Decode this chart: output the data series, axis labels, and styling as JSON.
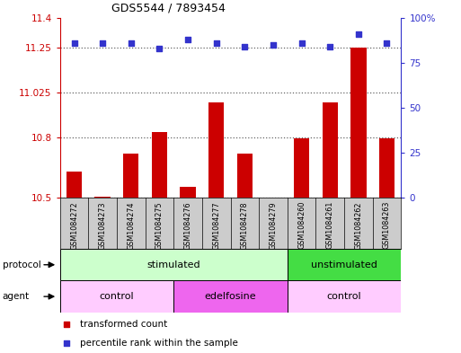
{
  "title": "GDS5544 / 7893454",
  "samples": [
    "GSM1084272",
    "GSM1084273",
    "GSM1084274",
    "GSM1084275",
    "GSM1084276",
    "GSM1084277",
    "GSM1084278",
    "GSM1084279",
    "GSM1084260",
    "GSM1084261",
    "GSM1084262",
    "GSM1084263"
  ],
  "transformed_counts": [
    10.63,
    10.505,
    10.72,
    10.83,
    10.555,
    10.975,
    10.72,
    10.502,
    10.795,
    10.975,
    11.25,
    10.795
  ],
  "percentile_ranks": [
    86,
    86,
    86,
    83,
    88,
    86,
    84,
    85,
    86,
    84,
    91,
    86
  ],
  "ylim_left": [
    10.5,
    11.4
  ],
  "ylim_right": [
    0,
    100
  ],
  "yticks_left": [
    10.5,
    10.8,
    11.025,
    11.25,
    11.4
  ],
  "ytick_labels_left": [
    "10.5",
    "10.8",
    "11.025",
    "11.25",
    "11.4"
  ],
  "yticks_right": [
    0,
    25,
    50,
    75,
    100
  ],
  "ytick_labels_right": [
    "0",
    "25",
    "50",
    "75",
    "100%"
  ],
  "bar_color": "#cc0000",
  "dot_color": "#3333cc",
  "protocol_groups": [
    {
      "label": "stimulated",
      "start": 0,
      "end": 8,
      "color": "#ccffcc"
    },
    {
      "label": "unstimulated",
      "start": 8,
      "end": 12,
      "color": "#44dd44"
    }
  ],
  "agent_groups": [
    {
      "label": "control",
      "start": 0,
      "end": 4,
      "color": "#ffccff"
    },
    {
      "label": "edelfosine",
      "start": 4,
      "end": 8,
      "color": "#ee66ee"
    },
    {
      "label": "control",
      "start": 8,
      "end": 12,
      "color": "#ffccff"
    }
  ],
  "legend_items": [
    {
      "label": "transformed count",
      "color": "#cc0000"
    },
    {
      "label": "percentile rank within the sample",
      "color": "#3333cc"
    }
  ],
  "background_color": "#ffffff",
  "grid_color": "#666666",
  "tick_label_color_left": "#cc0000",
  "tick_label_color_right": "#3333cc",
  "protocol_label": "protocol",
  "agent_label": "agent",
  "sample_bg_color": "#cccccc"
}
